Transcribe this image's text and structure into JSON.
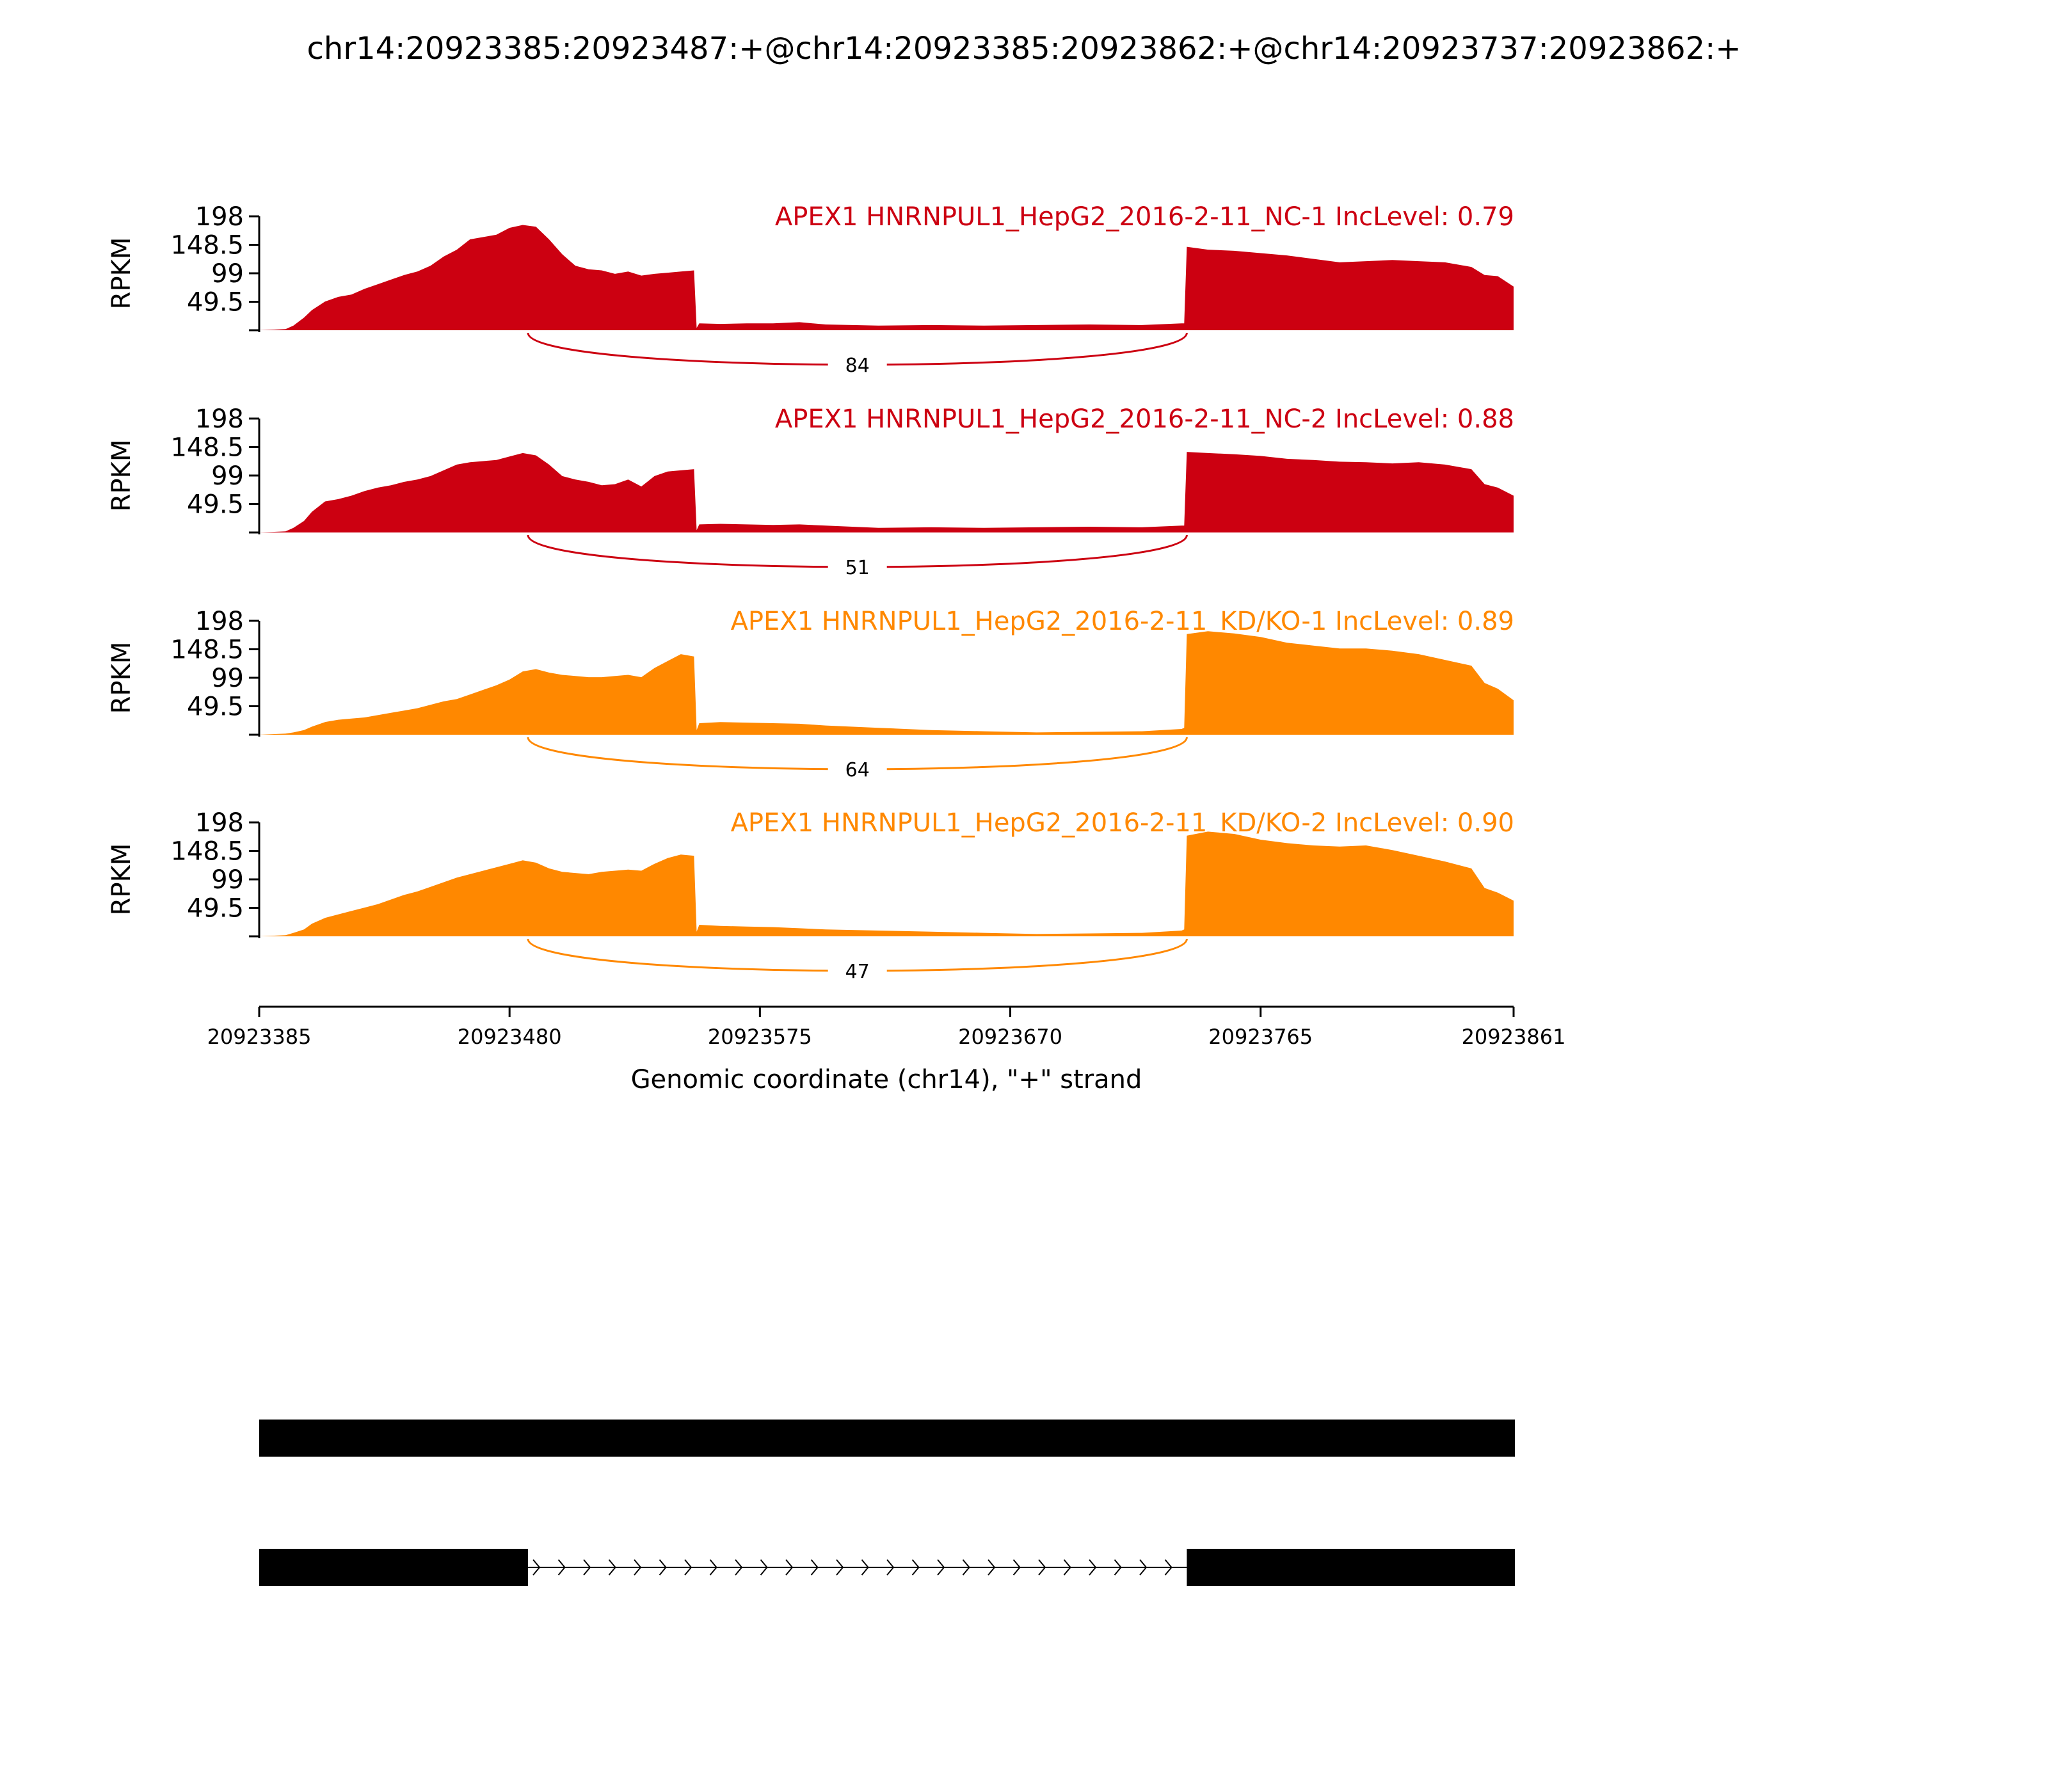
{
  "title": "chr14:20923385:20923487:+@chr14:20923385:20923862:+@chr14:20923737:20923862:+",
  "chart_data": {
    "type": "area",
    "title": "chr14:20923385:20923487:+@chr14:20923385:20923862:+@chr14:20923737:20923862:+",
    "xlabel": "Genomic coordinate (chr14), \"+\" strand",
    "ylabel": "RPKM",
    "xlim": [
      20923385,
      20923861
    ],
    "ylim": [
      0,
      198
    ],
    "yticks": [
      "198",
      "148.5",
      "99",
      "49.5"
    ],
    "xticks": [
      "20923385",
      "20923480",
      "20923575",
      "20923670",
      "20923765",
      "20923861"
    ],
    "colors": {
      "NC": "#cc0011",
      "KD": "#ff8800"
    },
    "tracks": [
      {
        "label": "APEX1 HNRNPUL1_HepG2_2016-2-11_NC-1 IncLevel: 0.79",
        "color": "#cc0011",
        "junction": {
          "from": 20923487,
          "to": 20923737,
          "count": "84"
        },
        "x": [
          20923385,
          20923395,
          20923398,
          20923402,
          20923405,
          20923410,
          20923415,
          20923420,
          20923425,
          20923430,
          20923435,
          20923440,
          20923445,
          20923450,
          20923455,
          20923460,
          20923465,
          20923470,
          20923475,
          20923480,
          20923485,
          20923490,
          20923495,
          20923500,
          20923505,
          20923510,
          20923515,
          20923520,
          20923525,
          20923530,
          20923535,
          20923540,
          20923545,
          20923550,
          20923551,
          20923552,
          20923560,
          20923570,
          20923580,
          20923590,
          20923600,
          20923620,
          20923640,
          20923660,
          20923680,
          20923700,
          20923720,
          20923735,
          20923736,
          20923737,
          20923745,
          20923755,
          20923765,
          20923775,
          20923785,
          20923795,
          20923805,
          20923815,
          20923825,
          20923835,
          20923845,
          20923850,
          20923855,
          20923861
        ],
        "y": [
          0,
          2,
          8,
          22,
          35,
          50,
          58,
          62,
          72,
          80,
          88,
          96,
          102,
          112,
          128,
          140,
          158,
          162,
          166,
          178,
          183,
          180,
          158,
          132,
          112,
          106,
          104,
          98,
          102,
          95,
          98,
          100,
          102,
          104,
          4,
          12,
          11,
          12,
          12,
          14,
          10,
          8,
          9,
          8,
          9,
          10,
          9,
          12,
          12,
          145,
          140,
          138,
          134,
          130,
          124,
          118,
          120,
          122,
          120,
          118,
          110,
          96,
          94,
          76
        ]
      },
      {
        "label": "APEX1 HNRNPUL1_HepG2_2016-2-11_NC-2 IncLevel: 0.88",
        "color": "#cc0011",
        "junction": {
          "from": 20923487,
          "to": 20923737,
          "count": "51"
        },
        "x": [
          20923385,
          20923395,
          20923398,
          20923402,
          20923405,
          20923410,
          20923415,
          20923420,
          20923425,
          20923430,
          20923435,
          20923440,
          20923445,
          20923450,
          20923455,
          20923460,
          20923465,
          20923470,
          20923475,
          20923480,
          20923485,
          20923490,
          20923495,
          20923500,
          20923505,
          20923510,
          20923515,
          20923520,
          20923525,
          20923530,
          20923535,
          20923540,
          20923545,
          20923550,
          20923551,
          20923552,
          20923560,
          20923570,
          20923580,
          20923590,
          20923600,
          20923620,
          20923640,
          20923660,
          20923680,
          20923700,
          20923720,
          20923735,
          20923736,
          20923737,
          20923745,
          20923755,
          20923765,
          20923775,
          20923785,
          20923795,
          20923805,
          20923815,
          20923825,
          20923835,
          20923845,
          20923850,
          20923855,
          20923861
        ],
        "y": [
          0,
          2,
          8,
          20,
          36,
          54,
          58,
          64,
          72,
          78,
          82,
          88,
          92,
          98,
          108,
          118,
          122,
          124,
          126,
          132,
          138,
          134,
          118,
          98,
          92,
          88,
          82,
          84,
          92,
          80,
          98,
          106,
          108,
          110,
          4,
          14,
          15,
          14,
          13,
          14,
          12,
          8,
          9,
          8,
          9,
          10,
          9,
          12,
          12,
          140,
          138,
          136,
          133,
          128,
          126,
          123,
          122,
          120,
          122,
          118,
          110,
          84,
          78,
          64
        ]
      },
      {
        "label": "APEX1 HNRNPUL1_HepG2_2016-2-11_KD/KO-1 IncLevel: 0.89",
        "color": "#ff8800",
        "junction": {
          "from": 20923487,
          "to": 20923737,
          "count": "64"
        },
        "x": [
          20923385,
          20923395,
          20923398,
          20923402,
          20923405,
          20923410,
          20923415,
          20923420,
          20923425,
          20923430,
          20923435,
          20923440,
          20923445,
          20923450,
          20923455,
          20923460,
          20923465,
          20923470,
          20923475,
          20923480,
          20923485,
          20923490,
          20923495,
          20923500,
          20923505,
          20923510,
          20923515,
          20923520,
          20923525,
          20923530,
          20923535,
          20923540,
          20923545,
          20923550,
          20923551,
          20923552,
          20923560,
          20923570,
          20923580,
          20923590,
          20923600,
          20923620,
          20923640,
          20923660,
          20923680,
          20923700,
          20923720,
          20923735,
          20923736,
          20923737,
          20923745,
          20923755,
          20923765,
          20923775,
          20923785,
          20923795,
          20923805,
          20923815,
          20923825,
          20923835,
          20923845,
          20923850,
          20923855,
          20923861
        ],
        "y": [
          0,
          2,
          4,
          8,
          14,
          22,
          26,
          28,
          30,
          34,
          38,
          42,
          46,
          52,
          58,
          62,
          70,
          78,
          86,
          96,
          110,
          114,
          108,
          104,
          102,
          100,
          100,
          102,
          104,
          100,
          116,
          128,
          140,
          136,
          8,
          20,
          22,
          21,
          20,
          19,
          16,
          12,
          8,
          6,
          4,
          5,
          6,
          10,
          12,
          175,
          180,
          176,
          170,
          160,
          155,
          150,
          150,
          146,
          140,
          130,
          120,
          90,
          80,
          60
        ]
      },
      {
        "label": "APEX1 HNRNPUL1_HepG2_2016-2-11_KD/KO-2 IncLevel: 0.90",
        "color": "#ff8800",
        "junction": {
          "from": 20923487,
          "to": 20923737,
          "count": "47"
        },
        "x": [
          20923385,
          20923395,
          20923398,
          20923402,
          20923405,
          20923410,
          20923415,
          20923420,
          20923425,
          20923430,
          20923435,
          20923440,
          20923445,
          20923450,
          20923455,
          20923460,
          20923465,
          20923470,
          20923475,
          20923480,
          20923485,
          20923490,
          20923495,
          20923500,
          20923505,
          20923510,
          20923515,
          20923520,
          20923525,
          20923530,
          20923535,
          20923540,
          20923545,
          20923550,
          20923551,
          20923552,
          20923560,
          20923570,
          20923580,
          20923590,
          20923600,
          20923620,
          20923640,
          20923660,
          20923680,
          20923700,
          20923720,
          20923735,
          20923736,
          20923737,
          20923745,
          20923755,
          20923765,
          20923775,
          20923785,
          20923795,
          20923805,
          20923815,
          20923825,
          20923835,
          20923845,
          20923850,
          20923855,
          20923861
        ],
        "y": [
          0,
          2,
          6,
          12,
          22,
          32,
          38,
          44,
          50,
          56,
          64,
          72,
          78,
          86,
          94,
          102,
          108,
          114,
          120,
          126,
          132,
          128,
          118,
          112,
          110,
          108,
          112,
          114,
          116,
          114,
          126,
          136,
          142,
          140,
          8,
          20,
          18,
          17,
          16,
          14,
          12,
          10,
          8,
          6,
          4,
          5,
          6,
          10,
          12,
          175,
          182,
          178,
          168,
          162,
          158,
          156,
          158,
          150,
          140,
          130,
          118,
          84,
          76,
          62
        ]
      }
    ],
    "gene_structure": [
      {
        "exons": [
          [
            20923385,
            20923862
          ]
        ],
        "intron_arrows": false
      },
      {
        "exons": [
          [
            20923385,
            20923487
          ],
          [
            20923737,
            20923862
          ]
        ],
        "intron_arrows": true
      }
    ]
  }
}
